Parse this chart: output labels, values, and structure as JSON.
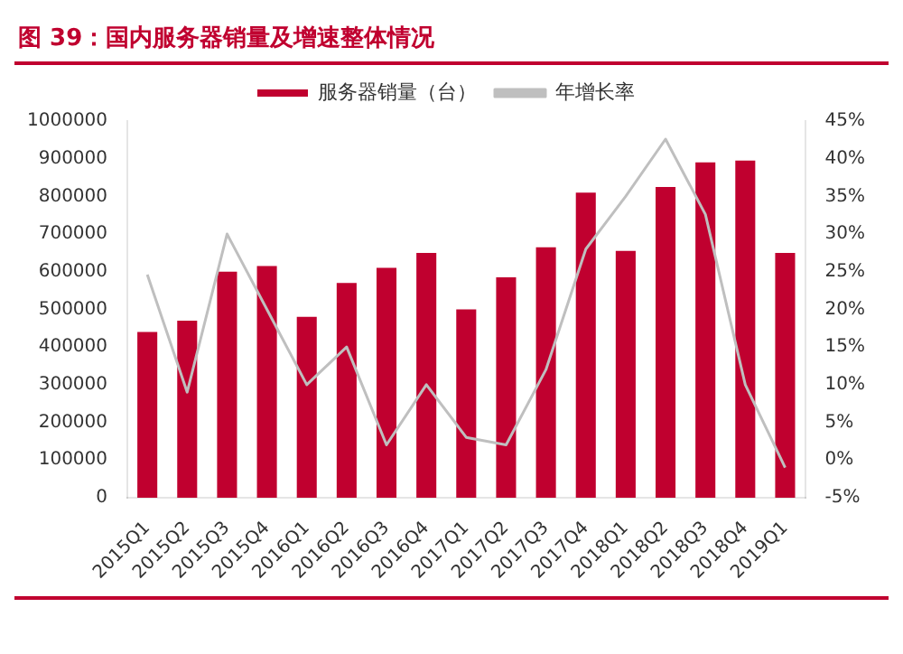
{
  "chart_data": {
    "type": "bar",
    "title": "图 39：国内服务器销量及增速整体情况",
    "categories": [
      "2015Q1",
      "2015Q2",
      "2015Q3",
      "2015Q4",
      "2016Q1",
      "2016Q2",
      "2016Q3",
      "2016Q4",
      "2017Q1",
      "2017Q2",
      "2017Q3",
      "2017Q4",
      "2018Q1",
      "2018Q2",
      "2018Q3",
      "2018Q4",
      "2019Q1"
    ],
    "series": [
      {
        "name": "服务器销量（台）",
        "color": "#c0002f",
        "values": [
          440000,
          470000,
          600000,
          615000,
          480000,
          570000,
          610000,
          650000,
          500000,
          585000,
          665000,
          810000,
          655000,
          825000,
          890000,
          895000,
          650000
        ]
      },
      {
        "name": "年增长率",
        "type": "line",
        "axis": "y2",
        "color": "#bfbfbf",
        "marker": "none",
        "values": [
          24.6,
          9,
          30,
          20,
          10,
          15,
          2,
          10,
          3,
          2,
          12,
          28,
          35,
          42.6,
          32.6,
          10,
          -1
        ]
      }
    ],
    "ylim": [
      0,
      1000000
    ],
    "yticks": [
      0,
      100000,
      200000,
      300000,
      400000,
      500000,
      600000,
      700000,
      800000,
      900000,
      1000000
    ],
    "y2lim": [
      -5,
      45
    ],
    "y2ticks": [
      {
        "value": -5,
        "label": "-5%"
      },
      {
        "value": 0,
        "label": "0%"
      },
      {
        "value": 5,
        "label": "5%"
      },
      {
        "value": 10,
        "label": "10%"
      },
      {
        "value": 15,
        "label": "15%"
      },
      {
        "value": 20,
        "label": "20%"
      },
      {
        "value": 25,
        "label": "25%"
      },
      {
        "value": 30,
        "label": "30%"
      },
      {
        "value": 35,
        "label": "35%"
      },
      {
        "value": 40,
        "label": "40%"
      },
      {
        "value": 45,
        "label": "45%"
      }
    ],
    "grid": false,
    "legend": "top"
  }
}
